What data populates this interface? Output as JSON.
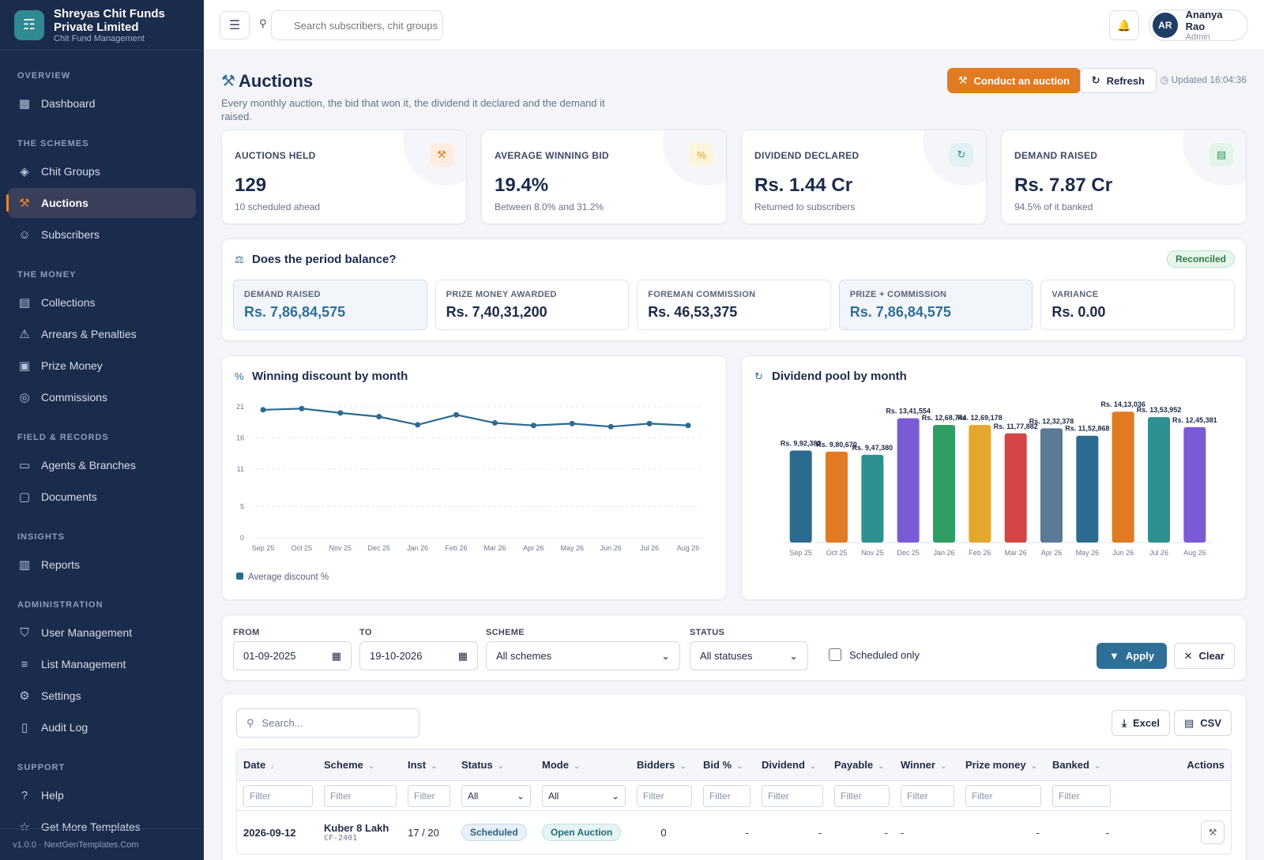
{
  "brand": {
    "name_line1": "Shreyas Chit Funds",
    "name_line2": "Private Limited",
    "subtitle": "Chit Fund Management"
  },
  "sidebar": {
    "sections": [
      {
        "title": "OVERVIEW",
        "items": [
          {
            "label": "Dashboard",
            "icon": "dashboard-icon"
          }
        ]
      },
      {
        "title": "THE SCHEMES",
        "items": [
          {
            "label": "Chit Groups",
            "icon": "layers-icon"
          },
          {
            "label": "Auctions",
            "icon": "gavel-icon",
            "active": true
          },
          {
            "label": "Subscribers",
            "icon": "users-icon"
          }
        ]
      },
      {
        "title": "THE MONEY",
        "items": [
          {
            "label": "Collections",
            "icon": "receipt-icon"
          },
          {
            "label": "Arrears & Penalties",
            "icon": "warning-icon"
          },
          {
            "label": "Prize Money",
            "icon": "wallet-icon"
          },
          {
            "label": "Commissions",
            "icon": "coins-icon"
          }
        ]
      },
      {
        "title": "FIELD & RECORDS",
        "items": [
          {
            "label": "Agents & Branches",
            "icon": "id-card-icon"
          },
          {
            "label": "Documents",
            "icon": "folder-icon"
          }
        ]
      },
      {
        "title": "INSIGHTS",
        "items": [
          {
            "label": "Reports",
            "icon": "bar-chart-icon"
          }
        ]
      },
      {
        "title": "ADMINISTRATION",
        "items": [
          {
            "label": "User Management",
            "icon": "shield-icon"
          },
          {
            "label": "List Management",
            "icon": "list-icon"
          },
          {
            "label": "Settings",
            "icon": "gear-icon"
          },
          {
            "label": "Audit Log",
            "icon": "clipboard-icon"
          }
        ]
      },
      {
        "title": "SUPPORT",
        "items": [
          {
            "label": "Help",
            "icon": "help-icon"
          },
          {
            "label": "Get More Templates",
            "icon": "star-icon"
          }
        ]
      }
    ],
    "footer": "v1.0.0 · NextGenTemplates.Com"
  },
  "header": {
    "search_placeholder": "Search subscribers, chit groups",
    "user_initials": "AR",
    "user_name": "Ananya Rao",
    "user_role": "Admin"
  },
  "page": {
    "title": "Auctions",
    "subtitle": "Every monthly auction, the bid that won it, the dividend it declared and the demand it raised.",
    "conduct_label": "Conduct an auction",
    "refresh_label": "Refresh",
    "updated": "Updated 16:04:36"
  },
  "kpis": [
    {
      "label": "AUCTIONS HELD",
      "value": "129",
      "note": "10 scheduled ahead",
      "icon": "gavel-icon",
      "color": "#e07b23",
      "bg": "#fdece0"
    },
    {
      "label": "AVERAGE WINNING BID",
      "value": "19.4%",
      "note": "Between 8.0% and 31.2%",
      "icon": "percent-icon",
      "color": "#d9a21b",
      "bg": "#fdf4dc"
    },
    {
      "label": "DIVIDEND DECLARED",
      "value": "Rs. 1.44 Cr",
      "note": "Returned to subscribers",
      "icon": "refresh-icon",
      "color": "#2e8a93",
      "bg": "#e2f1f3"
    },
    {
      "label": "DEMAND RAISED",
      "value": "Rs. 7.87 Cr",
      "note": "94.5% of it banked",
      "icon": "receipt-icon",
      "color": "#2d9a5c",
      "bg": "#e3f4ea"
    }
  ],
  "balance": {
    "title": "Does the period balance?",
    "status": "Reconciled",
    "items": [
      {
        "label": "DEMAND RAISED",
        "value": "Rs. 7,86,84,575",
        "highlight": true
      },
      {
        "label": "PRIZE MONEY AWARDED",
        "value": "Rs. 7,40,31,200",
        "highlight": false
      },
      {
        "label": "FOREMAN COMMISSION",
        "value": "Rs. 46,53,375",
        "highlight": false
      },
      {
        "label": "PRIZE + COMMISSION",
        "value": "Rs. 7,86,84,575",
        "highlight": true
      },
      {
        "label": "VARIANCE",
        "value": "Rs. 0.00",
        "highlight": false
      }
    ]
  },
  "chart_data": [
    {
      "type": "line",
      "title": "Winning discount by month",
      "categories": [
        "Sep 25",
        "Oct 25",
        "Nov 25",
        "Dec 25",
        "Jan 26",
        "Feb 26",
        "Mar 26",
        "Apr 26",
        "May 26",
        "Jun 26",
        "Jul 26",
        "Aug 26"
      ],
      "series": [
        {
          "name": "Average discount %",
          "values": [
            20.5,
            20.7,
            20.0,
            19.4,
            18.1,
            19.7,
            18.4,
            18.0,
            18.3,
            17.8,
            18.3,
            18.0
          ],
          "color": "#2b6b8f"
        }
      ],
      "yticks": [
        0,
        5,
        11,
        16,
        21
      ],
      "ylim": [
        0,
        21
      ],
      "grid": true,
      "legend": "bottom-left"
    },
    {
      "type": "bar",
      "title": "Dividend pool by month",
      "categories": [
        "Sep 25",
        "Oct 25",
        "Nov 25",
        "Dec 25",
        "Jan 26",
        "Feb 26",
        "Mar 26",
        "Apr 26",
        "May 26",
        "Jun 26",
        "Jul 26",
        "Aug 26"
      ],
      "values": [
        992382,
        980670,
        947380,
        1341554,
        1268744,
        1269178,
        1177882,
        1232378,
        1152868,
        1413036,
        1353952,
        1245381
      ],
      "data_labels": [
        "Rs. 9,92,382",
        "Rs. 9,80,670",
        "Rs. 9,47,380",
        "Rs. 13,41,554",
        "Rs. 12,68,744",
        "Rs. 12,69,178",
        "Rs. 11,77,882",
        "Rs. 12,32,378",
        "Rs. 11,52,868",
        "Rs. 14,13,036",
        "Rs. 13,53,952",
        "Rs. 12,45,381"
      ],
      "colors": [
        "#2b6b8f",
        "#e07b23",
        "#2e918f",
        "#7b5bd4",
        "#2e9e62",
        "#e3a82b",
        "#d64545",
        "#5b7a93",
        "#2b6b8f",
        "#e07b23",
        "#2e918f",
        "#7b5bd4"
      ],
      "ylim": [
        0,
        1500000
      ],
      "grid": false
    }
  ],
  "filters": {
    "from_label": "FROM",
    "from_value": "01-09-2025",
    "to_label": "TO",
    "to_value": "19-10-2026",
    "scheme_label": "SCHEME",
    "scheme_value": "All schemes",
    "status_label": "STATUS",
    "status_value": "All statuses",
    "scheduled_only": "Scheduled only",
    "apply": "Apply",
    "clear": "Clear"
  },
  "table": {
    "search_placeholder": "Search...",
    "excel": "Excel",
    "csv": "CSV",
    "columns": [
      "Date",
      "Scheme",
      "Inst",
      "Status",
      "Mode",
      "Bidders",
      "Bid %",
      "Dividend",
      "Payable",
      "Winner",
      "Prize money",
      "Banked",
      "Actions"
    ],
    "filter_placeholder": "Filter",
    "filter_all": "All",
    "rows": [
      {
        "date": "2026-09-12",
        "scheme": "Kuber 8 Lakh",
        "code": "CF-2401",
        "inst": "17 / 20",
        "status": "Scheduled",
        "mode": "Open Auction",
        "bidders": "0",
        "bid": "-",
        "dividend": "-",
        "payable": "-",
        "winner": "-",
        "prize": "-",
        "banked": "-"
      }
    ]
  }
}
